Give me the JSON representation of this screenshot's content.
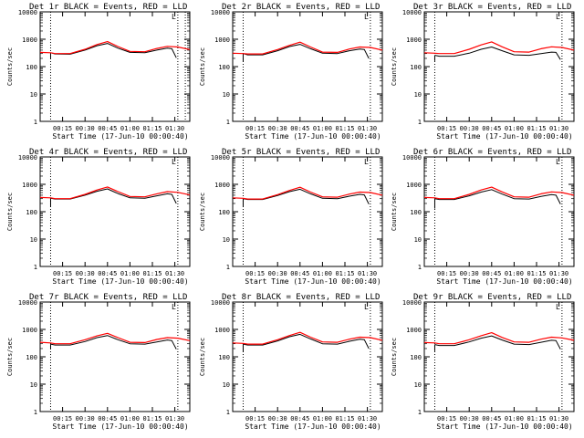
{
  "colors": {
    "events": "#000000",
    "lld": "#ff0000",
    "axis": "#000000",
    "marker": "#000000"
  },
  "xlabel": "Start Time (17-Jun-10 00:00:40)",
  "ylabel": "Counts/sec",
  "x_tick_labels": [
    "00:15",
    "00:30",
    "00:45",
    "01:00",
    "01:15",
    "01:30"
  ],
  "y_tick_labels": [
    "1",
    "10",
    "100",
    "1000",
    "10000"
  ],
  "chart_data": [
    {
      "type": "line",
      "title": "Det 1r BLACK = Events, RED = LLD",
      "corner_label": "L",
      "xlim": [
        0,
        100
      ],
      "ylim_log10": [
        0,
        4
      ],
      "x_ticks": [
        15,
        30,
        45,
        60,
        75,
        90
      ],
      "y_ticks_log10": [
        0,
        1,
        2,
        3,
        4
      ],
      "vlines": [
        7,
        92,
        97
      ],
      "black_start_drop": 200,
      "series": [
        {
          "name": "Events",
          "x": [
            7,
            10,
            20,
            30,
            38,
            45,
            52,
            60,
            70,
            78,
            85,
            88,
            91
          ],
          "y": [
            320,
            290,
            285,
            400,
            580,
            700,
            470,
            330,
            320,
            400,
            470,
            450,
            210
          ]
        },
        {
          "name": "LLD",
          "x": [
            0,
            7,
            10,
            20,
            30,
            38,
            45,
            52,
            60,
            70,
            78,
            85,
            92,
            100
          ],
          "y": [
            330,
            320,
            300,
            300,
            430,
            640,
            820,
            540,
            360,
            350,
            460,
            550,
            520,
            420
          ]
        }
      ]
    },
    {
      "type": "line",
      "title": "Det 2r BLACK = Events, RED = LLD",
      "corner_label": "L",
      "xlim": [
        0,
        100
      ],
      "ylim_log10": [
        0,
        4
      ],
      "x_ticks": [
        15,
        30,
        45,
        60,
        75,
        90
      ],
      "y_ticks_log10": [
        0,
        1,
        2,
        3,
        4
      ],
      "vlines": [
        7,
        92
      ],
      "black_start_drop": 150,
      "series": [
        {
          "name": "Events",
          "x": [
            7,
            10,
            20,
            30,
            38,
            45,
            52,
            60,
            70,
            78,
            85,
            88,
            91
          ],
          "y": [
            300,
            270,
            270,
            380,
            540,
            650,
            450,
            310,
            300,
            380,
            440,
            420,
            200
          ]
        },
        {
          "name": "LLD",
          "x": [
            0,
            7,
            10,
            20,
            30,
            38,
            45,
            52,
            60,
            70,
            78,
            85,
            92,
            100
          ],
          "y": [
            310,
            300,
            290,
            290,
            420,
            600,
            780,
            520,
            340,
            330,
            440,
            520,
            500,
            400
          ]
        }
      ]
    },
    {
      "type": "line",
      "title": "Det 3r BLACK = Events, RED = LLD",
      "corner_label": "L",
      "xlim": [
        0,
        100
      ],
      "ylim_log10": [
        0,
        4
      ],
      "x_ticks": [
        15,
        30,
        45,
        60,
        75,
        90
      ],
      "y_ticks_log10": [
        0,
        1,
        2,
        3,
        4
      ],
      "vlines": [
        7,
        92
      ],
      "black_start_drop": 160,
      "series": [
        {
          "name": "Events",
          "x": [
            7,
            10,
            20,
            30,
            38,
            45,
            52,
            60,
            70,
            78,
            85,
            88,
            91
          ],
          "y": [
            260,
            240,
            240,
            310,
            430,
            520,
            380,
            270,
            260,
            300,
            340,
            330,
            180
          ]
        },
        {
          "name": "LLD",
          "x": [
            0,
            7,
            10,
            20,
            30,
            38,
            45,
            52,
            60,
            70,
            78,
            85,
            92,
            100
          ],
          "y": [
            320,
            310,
            300,
            300,
            430,
            620,
            800,
            530,
            350,
            340,
            450,
            530,
            500,
            400
          ]
        }
      ]
    },
    {
      "type": "line",
      "title": "Det 4r BLACK = Events, RED = LLD",
      "corner_label": "L",
      "xlim": [
        0,
        100
      ],
      "ylim_log10": [
        0,
        4
      ],
      "x_ticks": [
        15,
        30,
        45,
        60,
        75,
        90
      ],
      "y_ticks_log10": [
        0,
        1,
        2,
        3,
        4
      ],
      "vlines": [
        7,
        92
      ],
      "black_start_drop": 150,
      "series": [
        {
          "name": "Events",
          "x": [
            7,
            10,
            20,
            30,
            38,
            45,
            52,
            60,
            70,
            78,
            85,
            88,
            91
          ],
          "y": [
            310,
            290,
            290,
            400,
            560,
            680,
            460,
            320,
            310,
            380,
            450,
            430,
            200
          ]
        },
        {
          "name": "LLD",
          "x": [
            0,
            7,
            10,
            20,
            30,
            38,
            45,
            52,
            60,
            70,
            78,
            85,
            92,
            100
          ],
          "y": [
            330,
            320,
            300,
            300,
            430,
            620,
            800,
            540,
            360,
            350,
            450,
            540,
            510,
            410
          ]
        }
      ]
    },
    {
      "type": "line",
      "title": "Det 5r BLACK = Events, RED = LLD",
      "corner_label": "L",
      "xlim": [
        0,
        100
      ],
      "ylim_log10": [
        0,
        4
      ],
      "x_ticks": [
        15,
        30,
        45,
        60,
        75,
        90
      ],
      "y_ticks_log10": [
        0,
        1,
        2,
        3,
        4
      ],
      "vlines": [
        7,
        92
      ],
      "black_start_drop": 150,
      "series": [
        {
          "name": "Events",
          "x": [
            7,
            10,
            20,
            30,
            38,
            45,
            52,
            60,
            70,
            78,
            85,
            88,
            91
          ],
          "y": [
            300,
            280,
            280,
            390,
            540,
            660,
            450,
            310,
            300,
            370,
            430,
            410,
            190
          ]
        },
        {
          "name": "LLD",
          "x": [
            0,
            7,
            10,
            20,
            30,
            38,
            45,
            52,
            60,
            70,
            78,
            85,
            92,
            100
          ],
          "y": [
            320,
            310,
            290,
            290,
            420,
            600,
            780,
            520,
            350,
            340,
            440,
            520,
            500,
            400
          ]
        }
      ]
    },
    {
      "type": "line",
      "title": "Det 6r BLACK = Events, RED = LLD",
      "corner_label": "L",
      "xlim": [
        0,
        100
      ],
      "ylim_log10": [
        0,
        4
      ],
      "x_ticks": [
        15,
        30,
        45,
        60,
        75,
        90
      ],
      "y_ticks_log10": [
        0,
        1,
        2,
        3,
        4
      ],
      "vlines": [
        7,
        92
      ],
      "black_start_drop": 130,
      "series": [
        {
          "name": "Events",
          "x": [
            7,
            10,
            20,
            30,
            38,
            45,
            52,
            60,
            70,
            78,
            85,
            88,
            91
          ],
          "y": [
            300,
            280,
            280,
            380,
            520,
            640,
            440,
            300,
            290,
            360,
            420,
            400,
            190
          ]
        },
        {
          "name": "LLD",
          "x": [
            0,
            7,
            10,
            20,
            30,
            38,
            45,
            52,
            60,
            70,
            78,
            85,
            92,
            100
          ],
          "y": [
            330,
            320,
            300,
            300,
            430,
            620,
            790,
            530,
            350,
            340,
            450,
            530,
            500,
            400
          ]
        }
      ]
    },
    {
      "type": "line",
      "title": "Det 7r BLACK = Events, RED = LLD",
      "corner_label": "L",
      "xlim": [
        0,
        100
      ],
      "ylim_log10": [
        0,
        4
      ],
      "x_ticks": [
        15,
        30,
        45,
        60,
        75,
        90
      ],
      "y_ticks_log10": [
        0,
        1,
        2,
        3,
        4
      ],
      "vlines": [
        7,
        92
      ],
      "black_start_drop": 200,
      "series": [
        {
          "name": "Events",
          "x": [
            7,
            10,
            20,
            30,
            38,
            45,
            52,
            60,
            70,
            78,
            85,
            88,
            91
          ],
          "y": [
            290,
            270,
            270,
            360,
            500,
            600,
            420,
            300,
            290,
            350,
            410,
            390,
            190
          ]
        },
        {
          "name": "LLD",
          "x": [
            0,
            7,
            10,
            20,
            30,
            38,
            45,
            52,
            60,
            70,
            78,
            85,
            92,
            100
          ],
          "y": [
            340,
            320,
            300,
            300,
            420,
            580,
            720,
            500,
            340,
            330,
            430,
            500,
            480,
            390
          ]
        }
      ]
    },
    {
      "type": "line",
      "title": "Det 8r BLACK = Events, RED = LLD",
      "corner_label": "L",
      "xlim": [
        0,
        100
      ],
      "ylim_log10": [
        0,
        4
      ],
      "x_ticks": [
        15,
        30,
        45,
        60,
        75,
        90
      ],
      "y_ticks_log10": [
        0,
        1,
        2,
        3,
        4
      ],
      "vlines": [
        7,
        92
      ],
      "black_start_drop": 150,
      "series": [
        {
          "name": "Events",
          "x": [
            7,
            10,
            20,
            30,
            38,
            45,
            52,
            60,
            70,
            78,
            85,
            88,
            91
          ],
          "y": [
            290,
            270,
            270,
            380,
            540,
            660,
            450,
            300,
            290,
            370,
            440,
            420,
            200
          ]
        },
        {
          "name": "LLD",
          "x": [
            0,
            7,
            10,
            20,
            30,
            38,
            45,
            52,
            60,
            70,
            78,
            85,
            92,
            100
          ],
          "y": [
            320,
            310,
            290,
            290,
            420,
            600,
            780,
            520,
            350,
            340,
            440,
            520,
            500,
            400
          ]
        }
      ]
    },
    {
      "type": "line",
      "title": "Det 9r BLACK = Events, RED = LLD",
      "corner_label": "L",
      "xlim": [
        0,
        100
      ],
      "ylim_log10": [
        0,
        4
      ],
      "x_ticks": [
        15,
        30,
        45,
        60,
        75,
        90
      ],
      "y_ticks_log10": [
        0,
        1,
        2,
        3,
        4
      ],
      "vlines": [
        7,
        92
      ],
      "black_start_drop": 160,
      "series": [
        {
          "name": "Events",
          "x": [
            7,
            10,
            20,
            30,
            38,
            45,
            52,
            60,
            70,
            78,
            85,
            88,
            91
          ],
          "y": [
            280,
            260,
            260,
            350,
            480,
            580,
            410,
            290,
            280,
            340,
            400,
            390,
            190
          ]
        },
        {
          "name": "LLD",
          "x": [
            0,
            7,
            10,
            20,
            30,
            38,
            45,
            52,
            60,
            70,
            78,
            85,
            92,
            100
          ],
          "y": [
            330,
            320,
            300,
            300,
            420,
            590,
            760,
            510,
            350,
            340,
            440,
            520,
            490,
            400
          ]
        }
      ]
    }
  ]
}
